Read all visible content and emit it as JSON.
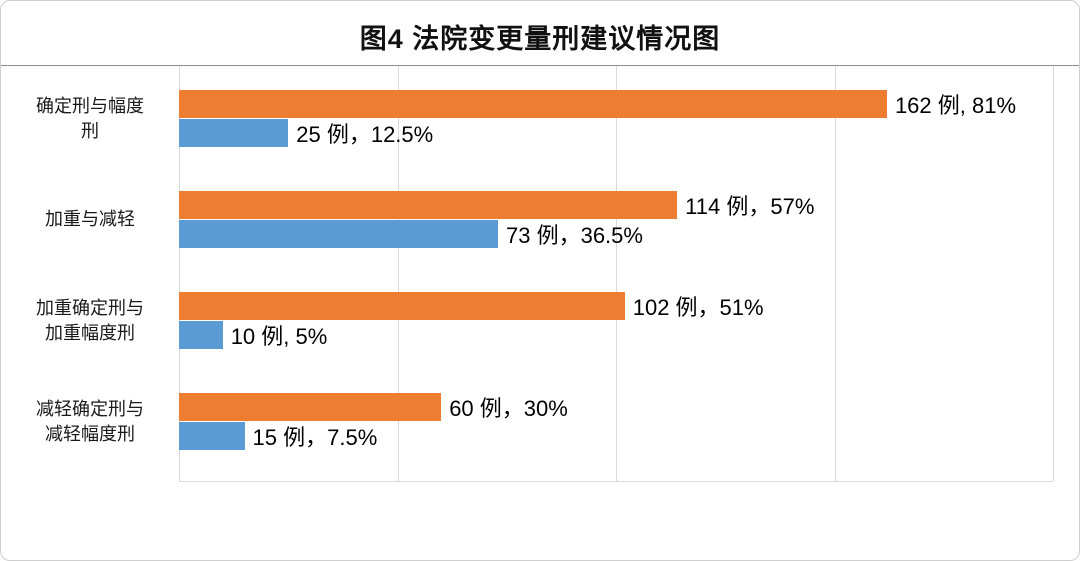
{
  "title": "图4 法院变更量刑建议情况图",
  "colors": {
    "orange": "#ED7D31",
    "blue": "#5B9BD5",
    "gridline": "#D9D9D9",
    "frame_border": "#CFCFCF",
    "plot_top_line": "#8C8C8C"
  },
  "chart_data": {
    "type": "bar",
    "orientation": "horizontal",
    "title": "图4 法院变更量刑建议情况图",
    "categories": [
      "确定刑与幅度\n刑",
      "加重与减轻",
      "加重确定刑与\n加重幅度刑",
      "减轻确定刑与\n减轻幅度刑"
    ],
    "series": [
      {
        "name": "orange-series",
        "color": "#ED7D31",
        "values": [
          162,
          114,
          102,
          60
        ],
        "labels": [
          "162 例, 81%",
          "114 例，57%",
          "102 例，51%",
          "60 例，30%"
        ]
      },
      {
        "name": "blue-series",
        "color": "#5B9BD5",
        "values": [
          25,
          73,
          10,
          15
        ],
        "labels": [
          "25 例，12.5%",
          "73 例，36.5%",
          "10 例, 5%",
          "15 例，7.5%"
        ]
      }
    ],
    "xlim": [
      0,
      200
    ],
    "gridlines": [
      0,
      50,
      100,
      150,
      200
    ],
    "grid": "vertical",
    "legend": "none"
  }
}
